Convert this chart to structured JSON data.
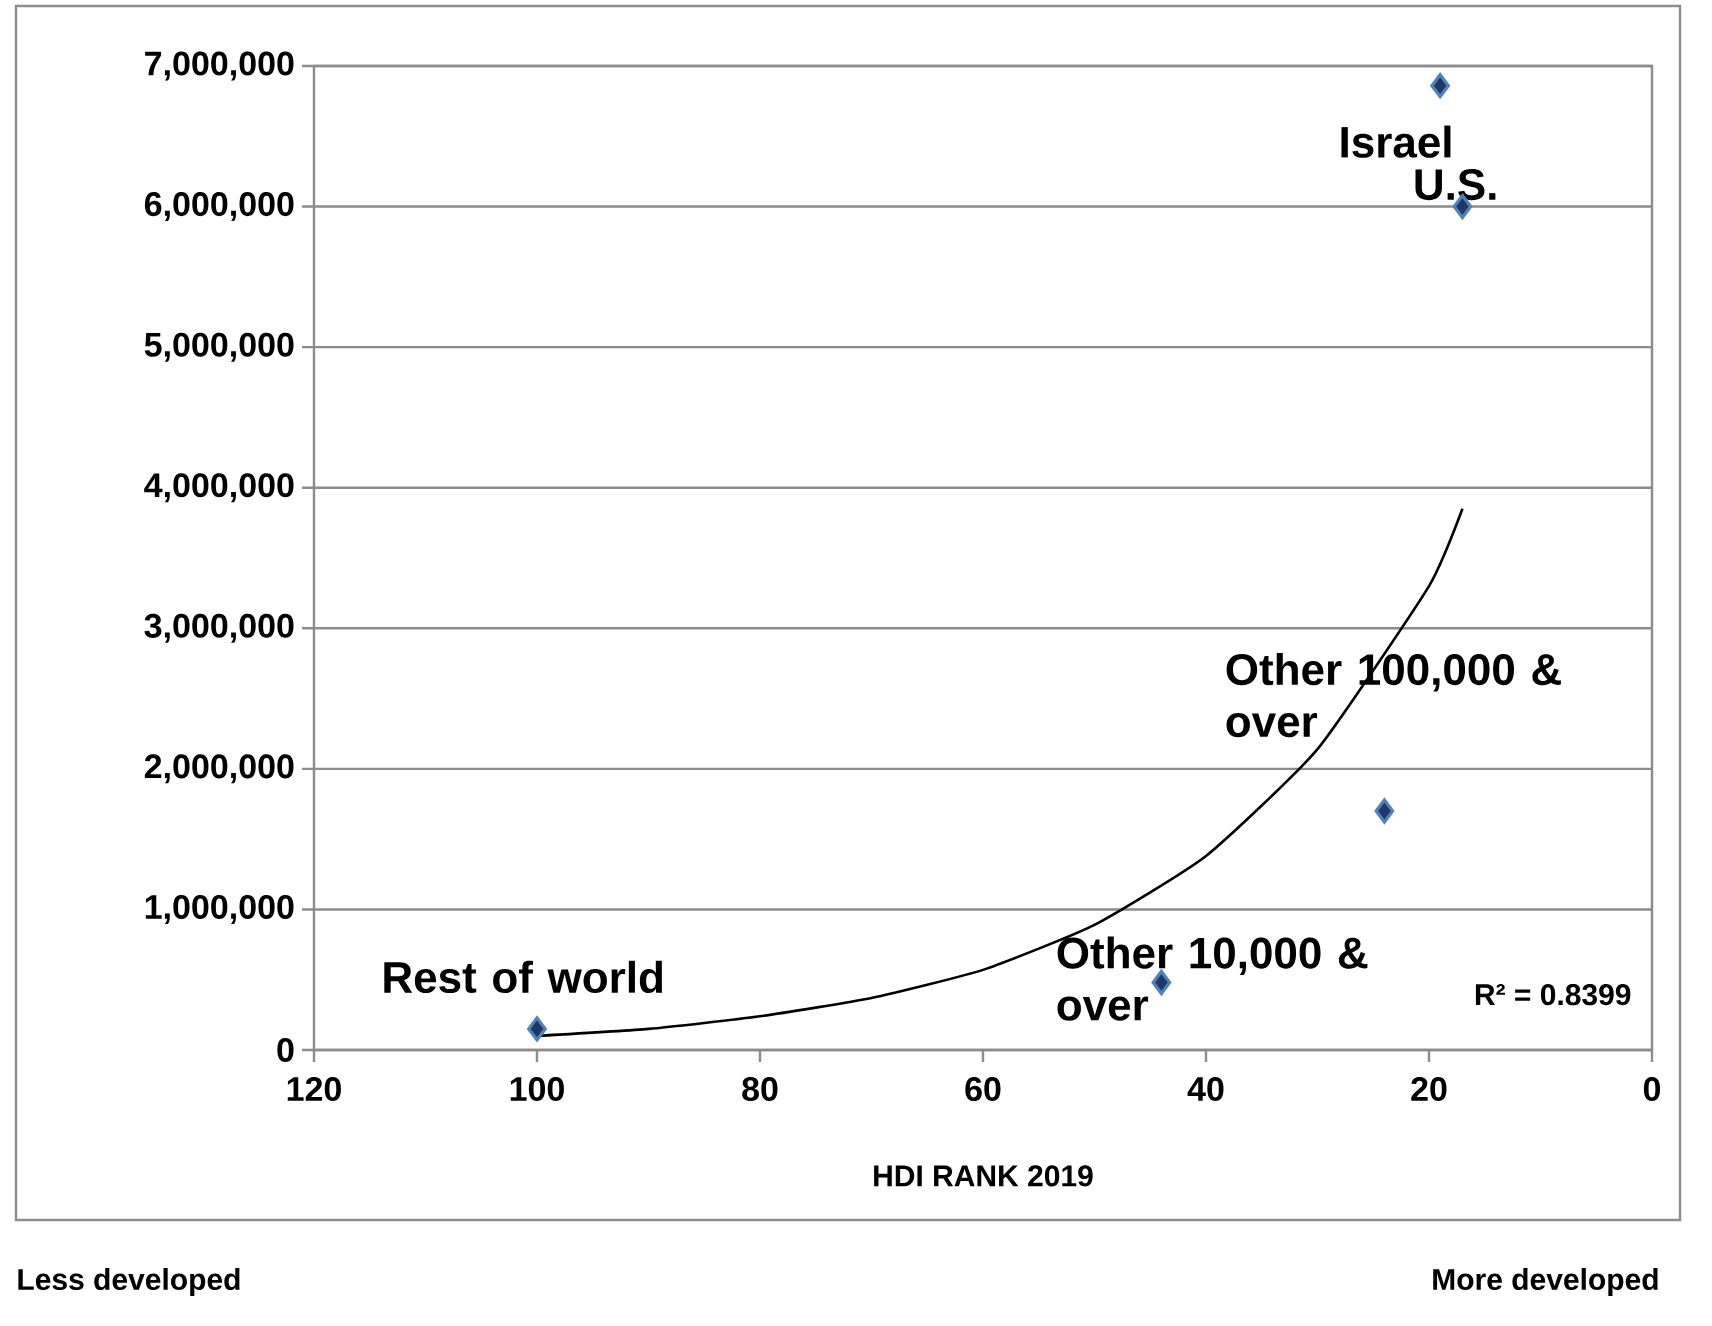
{
  "chart_data": {
    "type": "scatter",
    "xlabel": "HDI RANK 2019",
    "xlim": [
      120,
      0
    ],
    "xticks": [
      120,
      100,
      80,
      60,
      40,
      20,
      0
    ],
    "ylim": [
      0,
      7000000
    ],
    "yticks": [
      {
        "value": 0,
        "label": "0"
      },
      {
        "value": 1000000,
        "label": "1,000,000"
      },
      {
        "value": 2000000,
        "label": "2,000,000"
      },
      {
        "value": 3000000,
        "label": "3,000,000"
      },
      {
        "value": 4000000,
        "label": "4,000,000"
      },
      {
        "value": 5000000,
        "label": "5,000,000"
      },
      {
        "value": 6000000,
        "label": "6,000,000"
      },
      {
        "value": 7000000,
        "label": "7,000,000"
      }
    ],
    "grid": "y",
    "series": [
      {
        "type": "line",
        "color": "#000000",
        "x": [
          100,
          90,
          80,
          70,
          60,
          50,
          40,
          30,
          20,
          17
        ],
        "values": [
          100000,
          150000,
          240000,
          370000,
          570000,
          890000,
          1380000,
          2140000,
          3300000,
          3850000
        ]
      },
      {
        "color": "#1f3864",
        "marker": "diamond",
        "x": [
          19,
          17,
          24,
          44,
          100
        ],
        "values": [
          6860000,
          6000000,
          1700000,
          480000,
          150000
        ]
      }
    ],
    "annotations": [
      {
        "text": "Israel",
        "x": 19,
        "y": 6860000
      },
      {
        "text": "U.S.",
        "x": 17,
        "y": 6000000
      },
      {
        "text": "Other 100,000 & over",
        "x": 24,
        "y": 1700000
      },
      {
        "text": "Other 10,000 & over",
        "x": 44,
        "y": 480000
      },
      {
        "text": "Rest of world",
        "x": 100,
        "y": 150000
      },
      "R² = 0.8399",
      "Less developed",
      "More developed"
    ]
  }
}
